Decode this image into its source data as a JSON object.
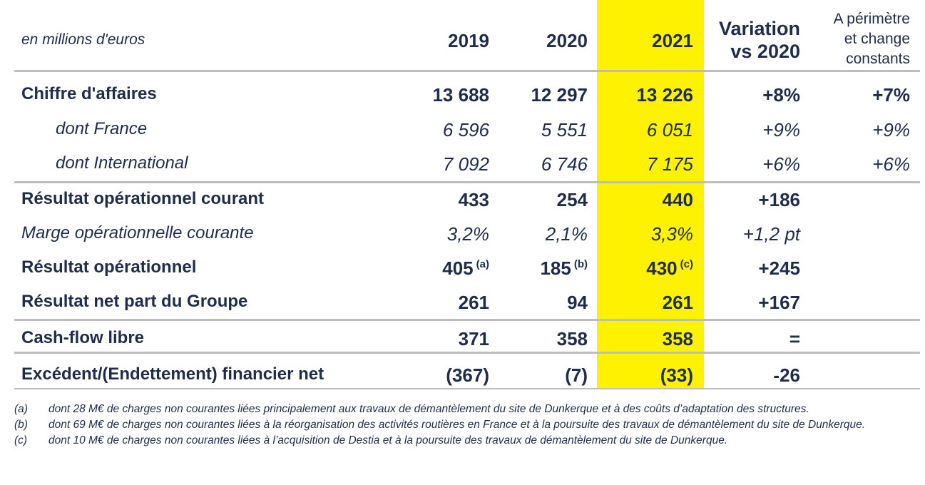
{
  "header": {
    "unit": "en millions d'euros",
    "y2019": "2019",
    "y2020": "2020",
    "y2021": "2021",
    "variation_l1": "Variation",
    "variation_l2": "vs 2020",
    "pc_l1": "A périmètre",
    "pc_l2": "et change",
    "pc_l3": "constants"
  },
  "rows": [
    {
      "label": "Chiffre d'affaires",
      "v2019": "13 688",
      "v2020": "12 297",
      "v2021": "13 226",
      "variation": "+8%",
      "constant": "+7%"
    },
    {
      "label": "dont France",
      "v2019": "6 596",
      "v2020": "5 551",
      "v2021": "6 051",
      "variation": "+9%",
      "constant": "+9%"
    },
    {
      "label": "dont International",
      "v2019": "7 092",
      "v2020": "6 746",
      "v2021": "7 175",
      "variation": "+6%",
      "constant": "+6%"
    },
    {
      "label": "Résultat opérationnel courant",
      "v2019": "433",
      "v2020": "254",
      "v2021": "440",
      "variation": "+186",
      "constant": ""
    },
    {
      "label": "Marge opérationnelle courante",
      "v2019": "3,2%",
      "v2020": "2,1%",
      "v2021": "3,3%",
      "variation": "+1,2 pt",
      "constant": ""
    },
    {
      "label": "Résultat opérationnel",
      "v2019": "405",
      "v2020": "185",
      "v2021": "430",
      "variation": "+245",
      "constant": "",
      "n2019": "(a)",
      "n2020": "(b)",
      "n2021": "(c)"
    },
    {
      "label": "Résultat net part du Groupe",
      "v2019": "261",
      "v2020": "94",
      "v2021": "261",
      "variation": "+167",
      "constant": ""
    },
    {
      "label": "Cash-flow libre",
      "v2019": "371",
      "v2020": "358",
      "v2021": "358",
      "variation": "=",
      "constant": ""
    },
    {
      "label": "Excédent/(Endettement) financier net",
      "v2019": "(367)",
      "v2020": "(7)",
      "v2021": "(33)",
      "variation": "-26",
      "constant": ""
    }
  ],
  "footnotes": [
    {
      "tag": "(a)",
      "text": "dont 28 M€ de charges non courantes liées principalement aux travaux de démantèlement du site de Dunkerque et à des coûts d’adaptation des structures."
    },
    {
      "tag": "(b)",
      "text": "dont 69 M€ de charges non courantes liées à la réorganisation des activités routières en France et à la poursuite des travaux de démantèlement du site de Dunkerque."
    },
    {
      "tag": "(c)",
      "text": "dont 10 M€ de charges non courantes liées à l’acquisition de Destia et à la poursuite des travaux de démantèlement du site de Dunkerque."
    }
  ],
  "colors": {
    "highlight": "#fff200",
    "text": "#1f2d4a",
    "rule": "#bdbdbd"
  }
}
